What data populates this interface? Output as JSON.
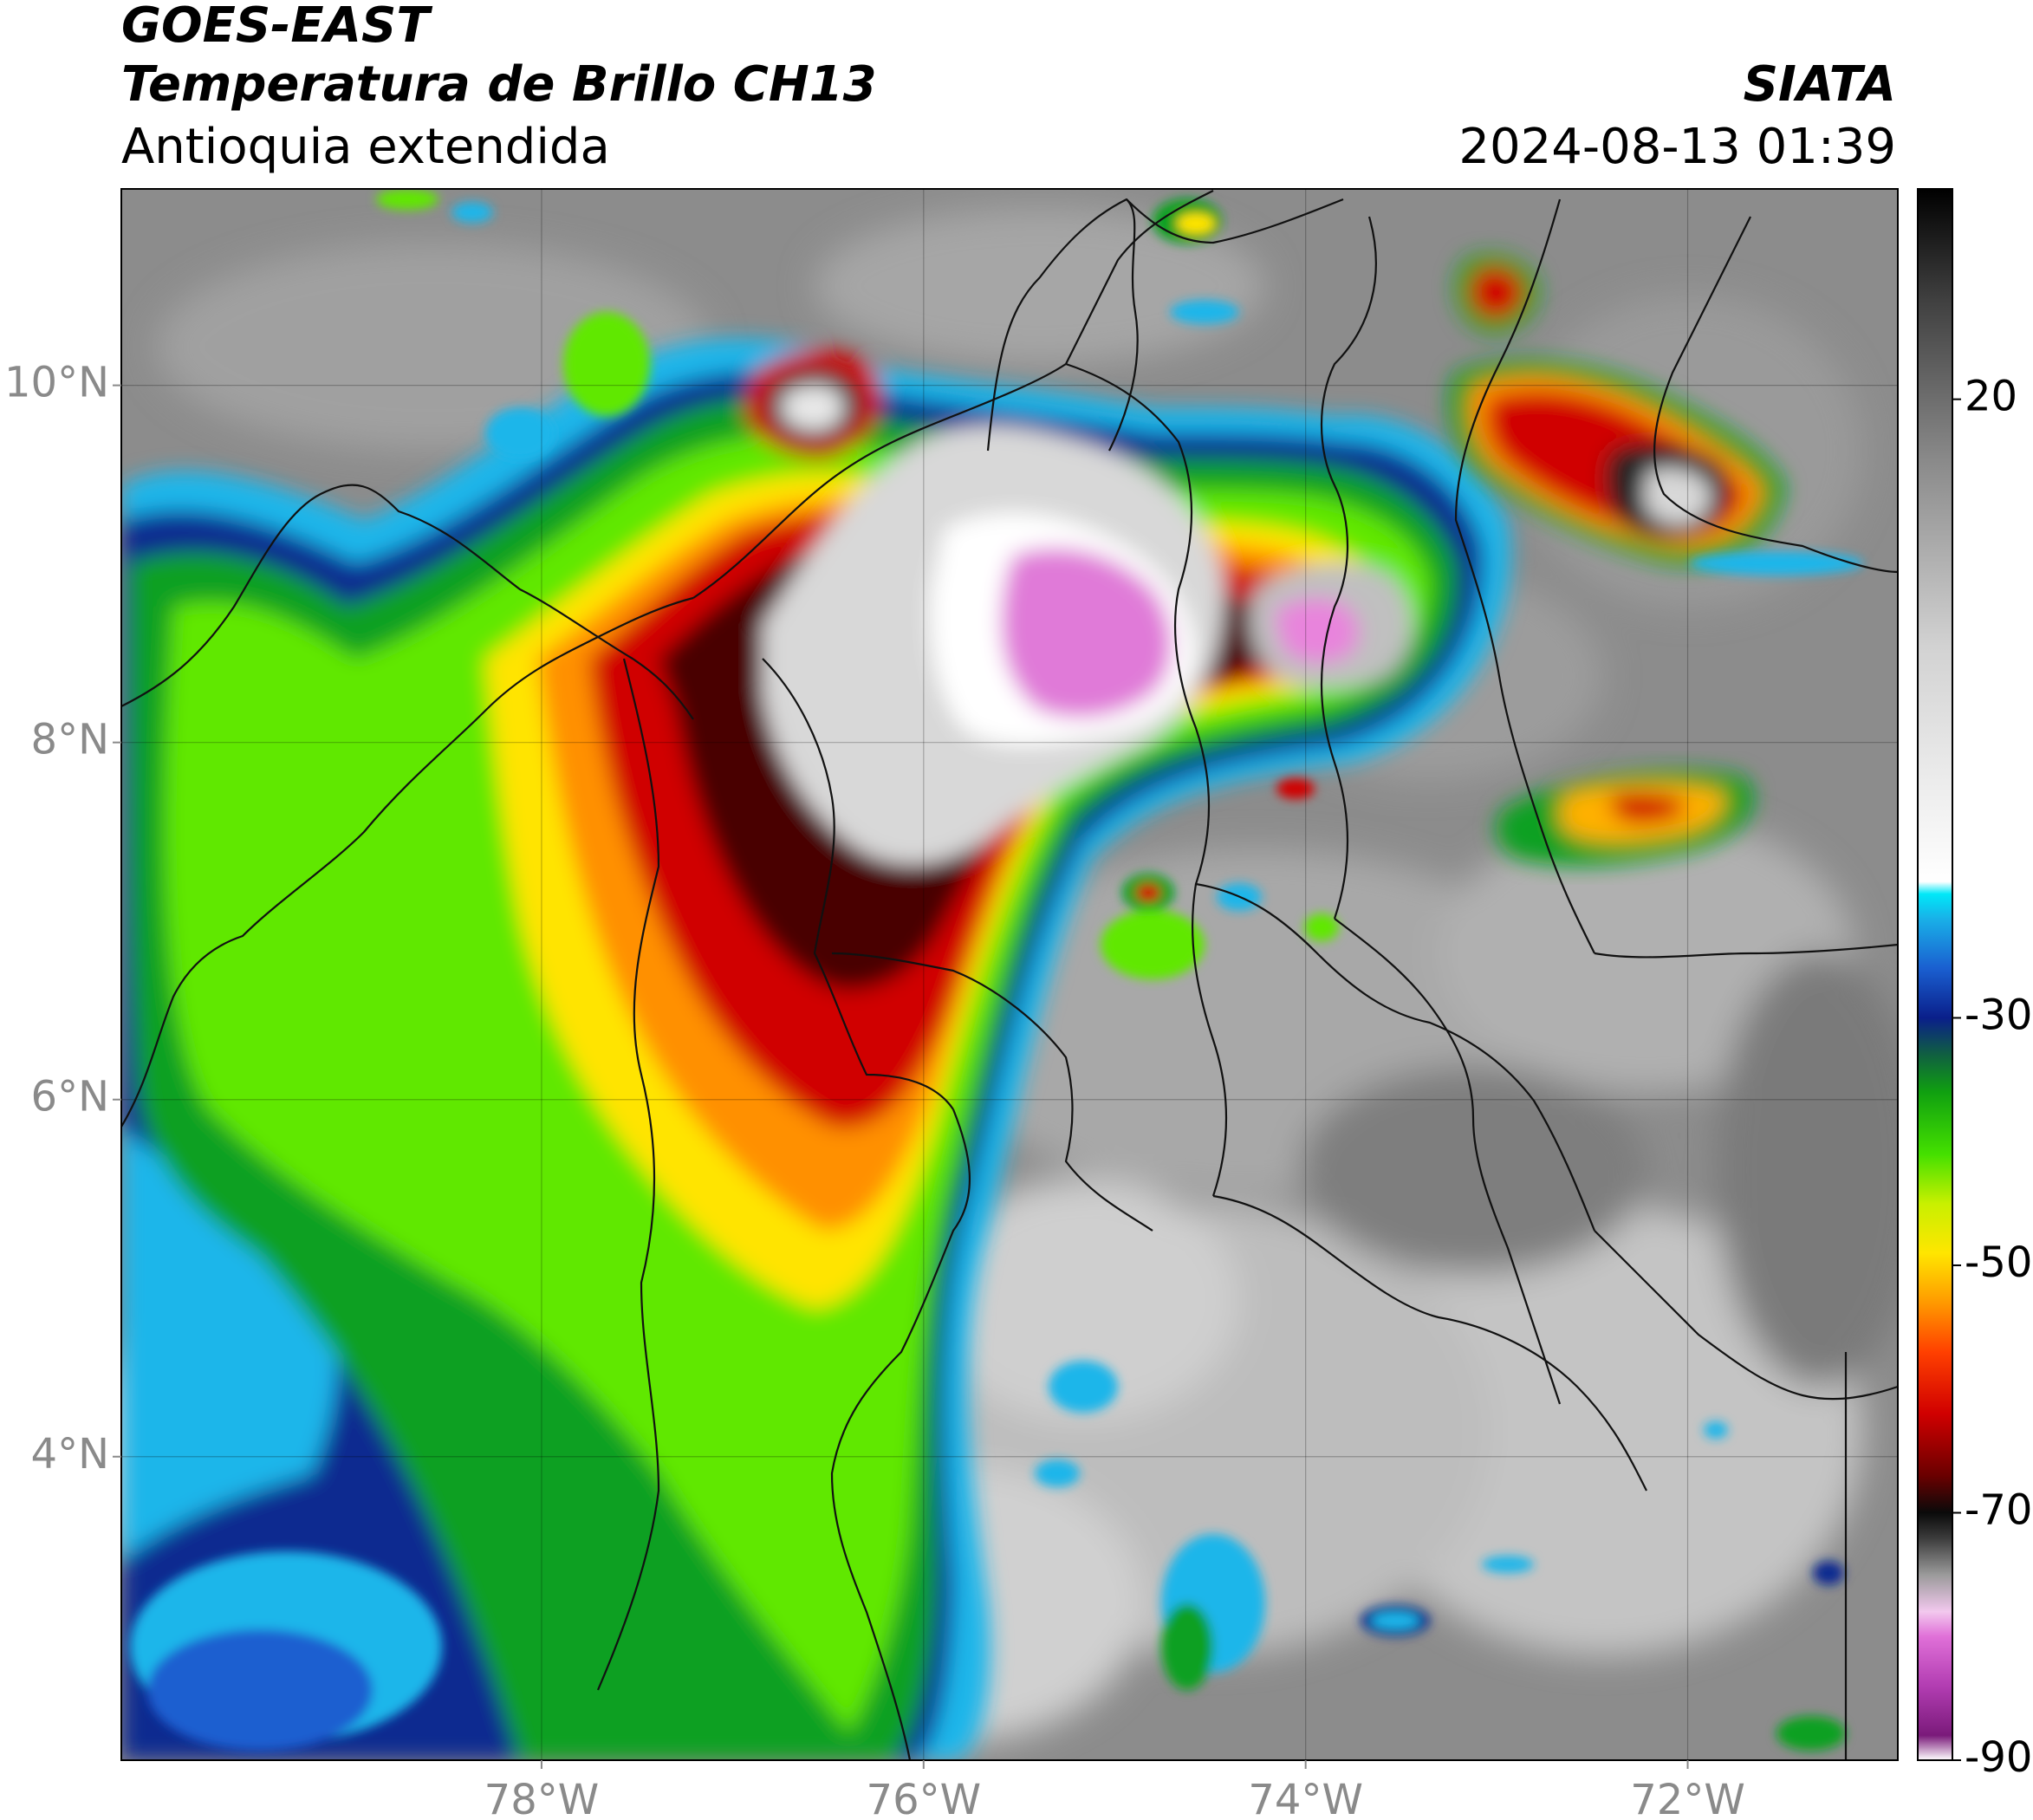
{
  "header": {
    "satellite": "GOES-EAST",
    "product": "Temperatura de Brillo CH13",
    "region": "Antioquia extendida",
    "agency": "SIATA",
    "datetime": "2024-08-13 01:39"
  },
  "map": {
    "lat_ticks": [
      {
        "value": 10,
        "label": "10°N"
      },
      {
        "value": 8,
        "label": "8°N"
      },
      {
        "value": 6,
        "label": "6°N"
      },
      {
        "value": 4,
        "label": "4°N"
      }
    ],
    "lon_ticks": [
      {
        "value": -78,
        "label": "78°W"
      },
      {
        "value": -76,
        "label": "76°W"
      },
      {
        "value": -74,
        "label": "74°W"
      },
      {
        "value": -72,
        "label": "72°W"
      }
    ],
    "extent": {
      "lon_min": -80.2,
      "lon_max": -70.9,
      "lat_min": 2.3,
      "lat_max": 11.1
    },
    "gridlines": true
  },
  "colorbar": {
    "ticks": [
      {
        "value": 20,
        "label": "20"
      },
      {
        "value": -30,
        "label": "-30"
      },
      {
        "value": -50,
        "label": "-50"
      },
      {
        "value": -70,
        "label": "-70"
      },
      {
        "value": -90,
        "label": "-90"
      }
    ],
    "range": [
      -90,
      37
    ],
    "stops": [
      {
        "t": -90,
        "color": "#ffffff"
      },
      {
        "t": -88,
        "color": "#7a1a7a"
      },
      {
        "t": -84,
        "color": "#b23db2"
      },
      {
        "t": -80,
        "color": "#e070d8"
      },
      {
        "t": -78,
        "color": "#f2c8ee"
      },
      {
        "t": -75,
        "color": "#9a9a9a"
      },
      {
        "t": -72,
        "color": "#3a3a3a"
      },
      {
        "t": -70,
        "color": "#0a0a0a"
      },
      {
        "t": -67,
        "color": "#6a0000"
      },
      {
        "t": -62,
        "color": "#d00000"
      },
      {
        "t": -57,
        "color": "#ff4000"
      },
      {
        "t": -53,
        "color": "#ff9a00"
      },
      {
        "t": -49,
        "color": "#ffe600"
      },
      {
        "t": -45,
        "color": "#c8f000"
      },
      {
        "t": -41,
        "color": "#44e000"
      },
      {
        "t": -36,
        "color": "#10a010"
      },
      {
        "t": -33,
        "color": "#106040"
      },
      {
        "t": -30,
        "color": "#0a1f8a"
      },
      {
        "t": -26,
        "color": "#1a5fd0"
      },
      {
        "t": -22,
        "color": "#19b0e8"
      },
      {
        "t": -20,
        "color": "#00e8f8"
      },
      {
        "t": -19,
        "color": "#ffffff"
      },
      {
        "t": 0,
        "color": "#d2d2d2"
      },
      {
        "t": 15,
        "color": "#8a8a8a"
      },
      {
        "t": 28,
        "color": "#404040"
      },
      {
        "t": 37,
        "color": "#000000"
      }
    ]
  }
}
